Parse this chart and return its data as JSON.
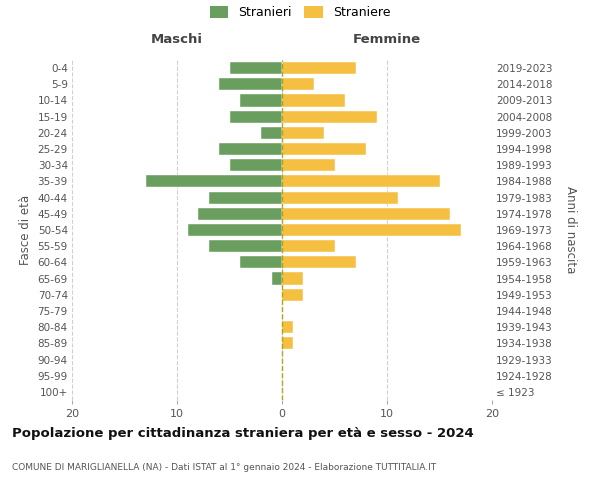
{
  "age_groups": [
    "100+",
    "95-99",
    "90-94",
    "85-89",
    "80-84",
    "75-79",
    "70-74",
    "65-69",
    "60-64",
    "55-59",
    "50-54",
    "45-49",
    "40-44",
    "35-39",
    "30-34",
    "25-29",
    "20-24",
    "15-19",
    "10-14",
    "5-9",
    "0-4"
  ],
  "birth_years": [
    "≤ 1923",
    "1924-1928",
    "1929-1933",
    "1934-1938",
    "1939-1943",
    "1944-1948",
    "1949-1953",
    "1954-1958",
    "1959-1963",
    "1964-1968",
    "1969-1973",
    "1974-1978",
    "1979-1983",
    "1984-1988",
    "1989-1993",
    "1994-1998",
    "1999-2003",
    "2004-2008",
    "2009-2013",
    "2014-2018",
    "2019-2023"
  ],
  "males": [
    0,
    0,
    0,
    0,
    0,
    0,
    0,
    1,
    4,
    7,
    9,
    8,
    7,
    13,
    5,
    6,
    2,
    5,
    4,
    6,
    5
  ],
  "females": [
    0,
    0,
    0,
    1,
    1,
    0,
    2,
    2,
    7,
    5,
    17,
    16,
    11,
    15,
    5,
    8,
    4,
    9,
    6,
    3,
    7
  ],
  "male_color": "#6a9e5f",
  "female_color": "#f5bf42",
  "background_color": "#ffffff",
  "grid_color": "#d0d0d0",
  "title": "Popolazione per cittadinanza straniera per età e sesso - 2024",
  "subtitle": "COMUNE DI MARIGLIANELLA (NA) - Dati ISTAT al 1° gennaio 2024 - Elaborazione TUTTITALIA.IT",
  "xlabel_left": "Maschi",
  "xlabel_right": "Femmine",
  "ylabel_left": "Fasce di età",
  "ylabel_right": "Anni di nascita",
  "legend_stranieri": "Stranieri",
  "legend_straniere": "Straniere",
  "xlim": 20
}
